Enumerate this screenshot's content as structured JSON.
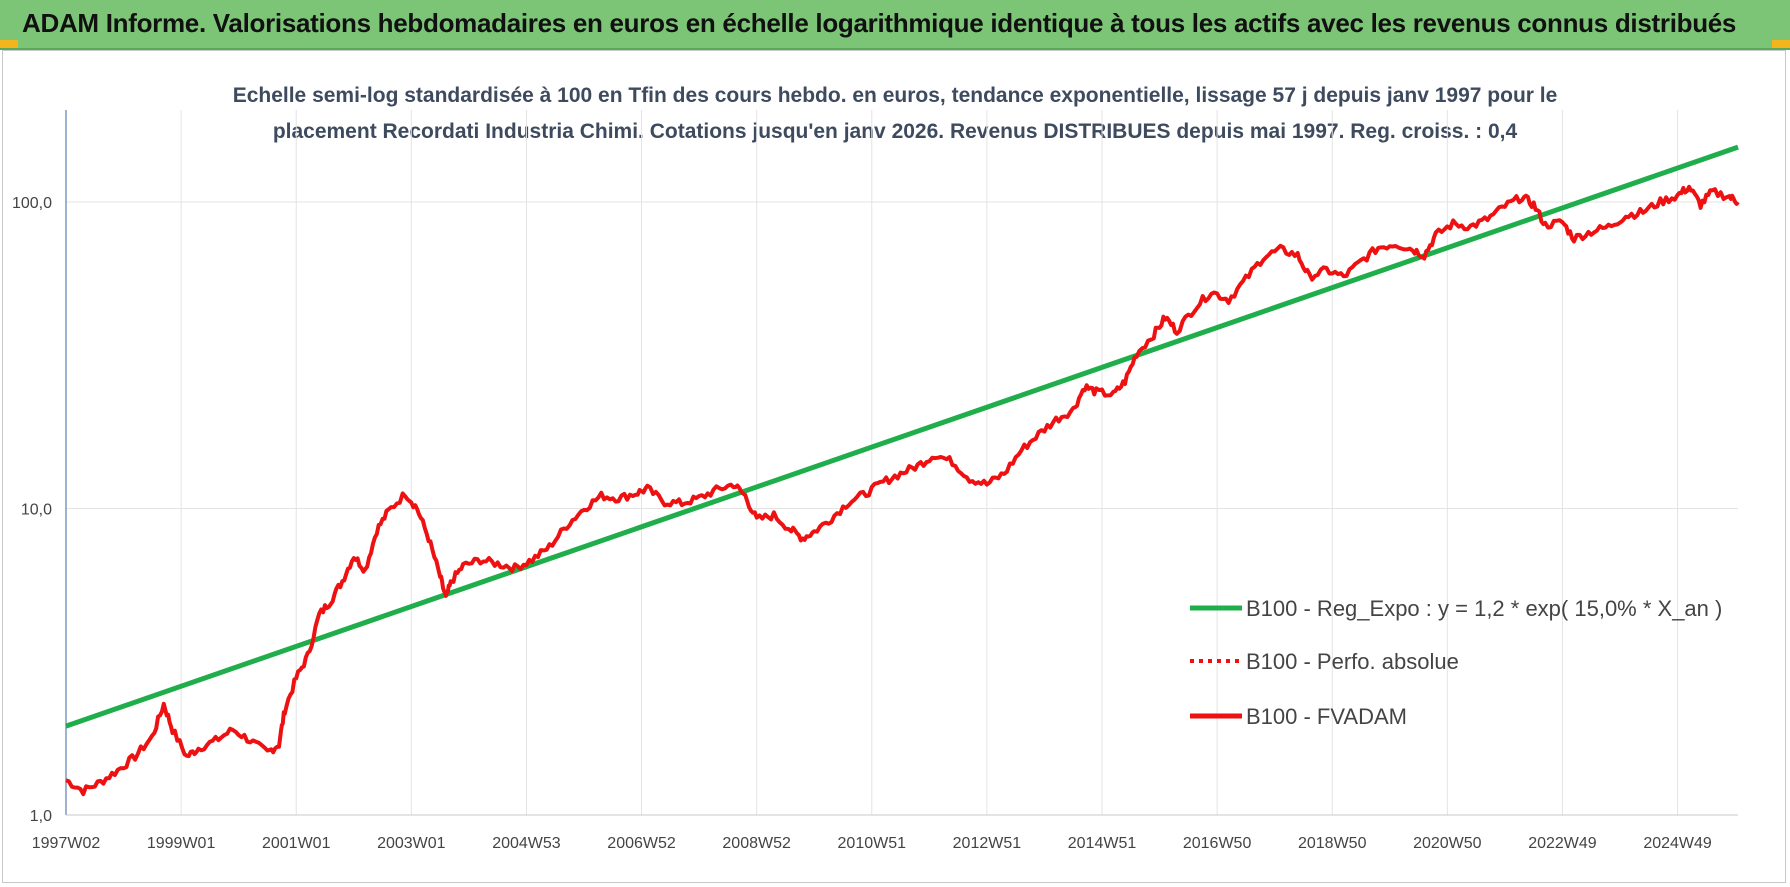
{
  "banner": {
    "title": "ADAM Informe. Valorisations hebdomadaires en euros en échelle logarithmique identique à tous les actifs avec les revenus connus distribués"
  },
  "colors": {
    "banner_bg": "#7cc576",
    "trend_line": "#1fae4b",
    "fvadam_line": "#ee1111",
    "perfo_line": "#ee1111",
    "corner_accent": "#f3b51c"
  },
  "chart_data": {
    "type": "line",
    "title_line1": "Echelle semi-log standardisée à 100 en Tfin des cours hebdo. en euros, tendance exponentielle, lissage 57 j depuis janv 1997 pour le",
    "title_line2": "placement Recordati Industria Chimi. Cotations jusqu'en janv 2026. Revenus DISTRIBUES depuis mai 1997. Reg. croiss. : 0,4",
    "y_scale": "log",
    "ylim": [
      1,
      180
    ],
    "y_ticks": [
      {
        "value": 1,
        "label": "1,0"
      },
      {
        "value": 10,
        "label": "10,0"
      },
      {
        "value": 100,
        "label": "100,0"
      }
    ],
    "xlim": [
      1997.0,
      2026.05
    ],
    "x_ticks": [
      {
        "value": 1997.0,
        "label": "1997W02"
      },
      {
        "value": 1999.0,
        "label": "1999W01"
      },
      {
        "value": 2001.0,
        "label": "2001W01"
      },
      {
        "value": 2003.0,
        "label": "2003W01"
      },
      {
        "value": 2005.0,
        "label": "2004W53"
      },
      {
        "value": 2007.0,
        "label": "2006W52"
      },
      {
        "value": 2009.0,
        "label": "2008W52"
      },
      {
        "value": 2011.0,
        "label": "2010W51"
      },
      {
        "value": 2013.0,
        "label": "2012W51"
      },
      {
        "value": 2015.0,
        "label": "2014W51"
      },
      {
        "value": 2017.0,
        "label": "2016W50"
      },
      {
        "value": 2019.0,
        "label": "2018W50"
      },
      {
        "value": 2021.0,
        "label": "2020W50"
      },
      {
        "value": 2023.0,
        "label": "2022W49"
      },
      {
        "value": 2025.0,
        "label": "2024W49"
      }
    ],
    "grid": "vertical",
    "legend_position": "bottom-right",
    "series": [
      {
        "name": "B100 - Reg_Expo : y = 1,2 * exp( 15,0% *  X_an )",
        "style": "solid",
        "color": "#1fae4b",
        "points": [
          [
            1997.0,
            1.95
          ],
          [
            2026.05,
            151
          ]
        ]
      },
      {
        "name": "B100 - Perfo. absolue",
        "style": "dotted",
        "color": "#ee1111",
        "points": []
      },
      {
        "name": "B100 - FVADAM",
        "style": "solid",
        "color": "#ee1111",
        "points": [
          [
            1997.0,
            1.3
          ],
          [
            1997.3,
            1.2
          ],
          [
            1997.6,
            1.28
          ],
          [
            1997.9,
            1.4
          ],
          [
            1998.2,
            1.55
          ],
          [
            1998.5,
            1.8
          ],
          [
            1998.7,
            2.3
          ],
          [
            1998.85,
            1.9
          ],
          [
            1999.1,
            1.55
          ],
          [
            1999.3,
            1.65
          ],
          [
            1999.6,
            1.75
          ],
          [
            1999.9,
            1.9
          ],
          [
            2000.2,
            1.75
          ],
          [
            2000.5,
            1.6
          ],
          [
            2000.7,
            1.7
          ],
          [
            2000.8,
            2.2
          ],
          [
            2001.0,
            2.8
          ],
          [
            2001.2,
            3.3
          ],
          [
            2001.4,
            4.5
          ],
          [
            2001.6,
            5.0
          ],
          [
            2001.8,
            5.8
          ],
          [
            2002.0,
            7.0
          ],
          [
            2002.2,
            6.3
          ],
          [
            2002.4,
            8.5
          ],
          [
            2002.6,
            9.8
          ],
          [
            2002.9,
            11.2
          ],
          [
            2003.1,
            10.0
          ],
          [
            2003.3,
            8.0
          ],
          [
            2003.5,
            6.0
          ],
          [
            2003.6,
            5.1
          ],
          [
            2003.7,
            5.8
          ],
          [
            2003.9,
            6.5
          ],
          [
            2004.2,
            6.8
          ],
          [
            2004.5,
            6.6
          ],
          [
            2004.8,
            6.4
          ],
          [
            2005.1,
            6.8
          ],
          [
            2005.4,
            7.5
          ],
          [
            2005.7,
            8.8
          ],
          [
            2006.0,
            10.0
          ],
          [
            2006.3,
            11.0
          ],
          [
            2006.6,
            10.8
          ],
          [
            2006.9,
            11.2
          ],
          [
            2007.1,
            11.6
          ],
          [
            2007.4,
            10.5
          ],
          [
            2007.7,
            10.4
          ],
          [
            2008.0,
            10.8
          ],
          [
            2008.3,
            11.5
          ],
          [
            2008.6,
            12.0
          ],
          [
            2008.8,
            11.0
          ],
          [
            2009.0,
            9.2
          ],
          [
            2009.3,
            9.5
          ],
          [
            2009.6,
            8.5
          ],
          [
            2009.8,
            8.0
          ],
          [
            2010.0,
            8.4
          ],
          [
            2010.3,
            9.3
          ],
          [
            2010.6,
            10.5
          ],
          [
            2010.9,
            11.2
          ],
          [
            2011.2,
            12.2
          ],
          [
            2011.5,
            13.0
          ],
          [
            2011.8,
            13.8
          ],
          [
            2012.1,
            15.0
          ],
          [
            2012.4,
            14.2
          ],
          [
            2012.7,
            12.5
          ],
          [
            2013.0,
            12.0
          ],
          [
            2013.3,
            13.0
          ],
          [
            2013.6,
            15.5
          ],
          [
            2013.9,
            17.5
          ],
          [
            2014.2,
            19.5
          ],
          [
            2014.5,
            21.0
          ],
          [
            2014.7,
            25.0
          ],
          [
            2014.9,
            24.0
          ],
          [
            2015.2,
            23.5
          ],
          [
            2015.4,
            26.0
          ],
          [
            2015.6,
            32.0
          ],
          [
            2015.9,
            37.0
          ],
          [
            2016.1,
            42.0
          ],
          [
            2016.3,
            38.0
          ],
          [
            2016.6,
            45.0
          ],
          [
            2016.9,
            51.0
          ],
          [
            2017.2,
            48.0
          ],
          [
            2017.5,
            56.0
          ],
          [
            2017.8,
            66.0
          ],
          [
            2018.1,
            70.0
          ],
          [
            2018.4,
            67.0
          ],
          [
            2018.6,
            57.0
          ],
          [
            2018.9,
            60.0
          ],
          [
            2019.2,
            57.0
          ],
          [
            2019.5,
            64.0
          ],
          [
            2019.8,
            71.0
          ],
          [
            2020.1,
            73.0
          ],
          [
            2020.4,
            70.0
          ],
          [
            2020.6,
            67.0
          ],
          [
            2020.8,
            78.0
          ],
          [
            2021.1,
            85.0
          ],
          [
            2021.4,
            83.0
          ],
          [
            2021.7,
            88.0
          ],
          [
            2022.0,
            97.0
          ],
          [
            2022.3,
            104.0
          ],
          [
            2022.5,
            98.0
          ],
          [
            2022.7,
            84.0
          ],
          [
            2023.0,
            86.0
          ],
          [
            2023.2,
            76.0
          ],
          [
            2023.5,
            80.0
          ],
          [
            2023.8,
            83.0
          ],
          [
            2024.1,
            90.0
          ],
          [
            2024.4,
            93.0
          ],
          [
            2024.7,
            100.0
          ],
          [
            2025.0,
            105.0
          ],
          [
            2025.2,
            112.0
          ],
          [
            2025.4,
            98.0
          ],
          [
            2025.6,
            108.0
          ],
          [
            2025.9,
            104.0
          ],
          [
            2026.05,
            100.0
          ]
        ]
      }
    ]
  }
}
